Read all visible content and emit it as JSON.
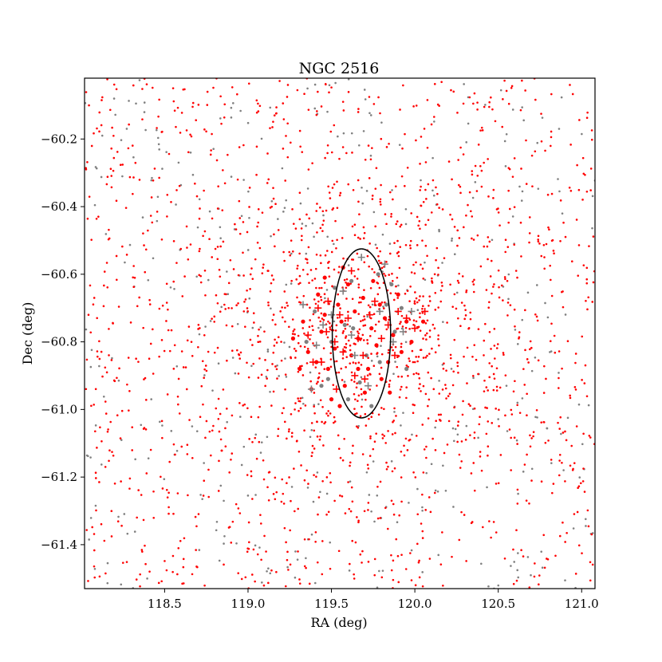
{
  "chart_data": {
    "type": "scatter",
    "title": "NGC 2516",
    "xlabel": "RA (deg)",
    "ylabel": "Dec (deg)",
    "xlim": [
      118.02,
      121.08
    ],
    "ylim": [
      -61.53,
      -60.02
    ],
    "xticks": [
      118.5,
      119.0,
      119.5,
      120.0,
      120.5,
      121.0
    ],
    "xtick_labels": [
      "118.5",
      "119.0",
      "119.5",
      "120.0",
      "120.5",
      "121.0"
    ],
    "yticks": [
      -60.2,
      -60.4,
      -60.6,
      -60.8,
      -61.0,
      -61.2,
      -61.4
    ],
    "ytick_labels": [
      "−60.2",
      "−60.4",
      "−60.6",
      "−60.8",
      "−61.0",
      "−61.2",
      "−61.4"
    ],
    "grid": false,
    "legend": "none",
    "region_circle": {
      "center": [
        119.68,
        -60.775
      ],
      "radius_deg": 0.25
    },
    "field_star_distribution": {
      "description_note": "uniform field of small dots plus a concentration near the circle center",
      "red_small_count_estimate": 1900,
      "gray_small_count_estimate": 420
    },
    "series": [
      {
        "marker": "dot-large",
        "color": "#ff0000",
        "points": [
          [
            119.27,
            -60.79
          ],
          [
            119.33,
            -60.74
          ],
          [
            119.36,
            -60.83
          ],
          [
            119.41,
            -60.86
          ],
          [
            119.44,
            -60.77
          ],
          [
            119.46,
            -60.72
          ],
          [
            119.48,
            -60.88
          ],
          [
            119.52,
            -60.82
          ],
          [
            119.54,
            -60.69
          ],
          [
            119.56,
            -60.74
          ],
          [
            119.58,
            -60.93
          ],
          [
            119.62,
            -60.84
          ],
          [
            119.64,
            -60.71
          ],
          [
            119.66,
            -60.79
          ],
          [
            119.69,
            -60.67
          ],
          [
            119.72,
            -60.88
          ],
          [
            119.74,
            -60.76
          ],
          [
            119.77,
            -60.81
          ],
          [
            119.79,
            -60.69
          ],
          [
            119.82,
            -60.73
          ],
          [
            119.84,
            -60.86
          ],
          [
            119.87,
            -60.78
          ],
          [
            119.92,
            -60.83
          ],
          [
            119.95,
            -60.74
          ],
          [
            119.98,
            -60.8
          ],
          [
            119.38,
            -60.94
          ],
          [
            119.5,
            -60.97
          ],
          [
            119.6,
            -60.63
          ],
          [
            119.7,
            -60.95
          ],
          [
            119.8,
            -60.91
          ],
          [
            119.42,
            -60.66
          ],
          [
            119.57,
            -60.58
          ],
          [
            119.75,
            -60.62
          ],
          [
            119.9,
            -60.66
          ],
          [
            120.05,
            -60.74
          ],
          [
            119.31,
            -60.88
          ],
          [
            119.46,
            -60.61
          ],
          [
            119.85,
            -60.95
          ],
          [
            119.55,
            -60.99
          ],
          [
            119.66,
            -60.88
          ]
        ]
      },
      {
        "marker": "dot-large",
        "color": "#808080",
        "points": [
          [
            119.4,
            -60.71
          ],
          [
            119.52,
            -60.64
          ],
          [
            119.63,
            -60.76
          ],
          [
            119.71,
            -60.84
          ],
          [
            119.78,
            -60.6
          ],
          [
            119.88,
            -60.77
          ],
          [
            119.95,
            -60.88
          ],
          [
            119.6,
            -60.97
          ],
          [
            119.48,
            -60.91
          ],
          [
            119.83,
            -60.69
          ],
          [
            119.67,
            -60.92
          ],
          [
            119.58,
            -60.75
          ],
          [
            119.92,
            -60.7
          ],
          [
            119.35,
            -60.8
          ],
          [
            119.74,
            -60.99
          ],
          [
            119.5,
            -60.8
          ],
          [
            119.79,
            -60.86
          ],
          [
            119.62,
            -60.62
          ],
          [
            119.44,
            -60.93
          ],
          [
            119.86,
            -60.63
          ]
        ]
      },
      {
        "marker": "plus",
        "color": "#ff0000",
        "points": [
          [
            119.36,
            -60.78
          ],
          [
            119.42,
            -60.7
          ],
          [
            119.44,
            -60.86
          ],
          [
            119.48,
            -60.68
          ],
          [
            119.52,
            -60.8
          ],
          [
            119.53,
            -60.94
          ],
          [
            119.57,
            -60.83
          ],
          [
            119.6,
            -60.73
          ],
          [
            119.64,
            -60.9
          ],
          [
            119.66,
            -60.79
          ],
          [
            119.7,
            -60.91
          ],
          [
            119.73,
            -60.72
          ],
          [
            119.76,
            -60.68
          ],
          [
            119.8,
            -60.79
          ],
          [
            119.84,
            -60.75
          ],
          [
            119.88,
            -60.84
          ],
          [
            119.95,
            -60.73
          ],
          [
            120.0,
            -60.76
          ],
          [
            119.62,
            -60.59
          ],
          [
            119.55,
            -60.72
          ],
          [
            119.47,
            -60.77
          ],
          [
            119.69,
            -60.84
          ],
          [
            119.9,
            -60.71
          ],
          [
            120.06,
            -60.71
          ],
          [
            119.39,
            -60.86
          ]
        ]
      },
      {
        "marker": "plus",
        "color": "#808080",
        "points": [
          [
            119.33,
            -60.69
          ],
          [
            119.38,
            -60.94
          ],
          [
            119.45,
            -60.75
          ],
          [
            119.5,
            -60.72
          ],
          [
            119.57,
            -60.65
          ],
          [
            119.62,
            -60.78
          ],
          [
            119.68,
            -60.55
          ],
          [
            119.72,
            -60.93
          ],
          [
            119.79,
            -60.71
          ],
          [
            119.82,
            -60.57
          ],
          [
            119.87,
            -60.8
          ],
          [
            119.93,
            -60.77
          ],
          [
            119.98,
            -60.71
          ],
          [
            119.41,
            -60.81
          ],
          [
            119.64,
            -60.84
          ]
        ]
      }
    ]
  }
}
